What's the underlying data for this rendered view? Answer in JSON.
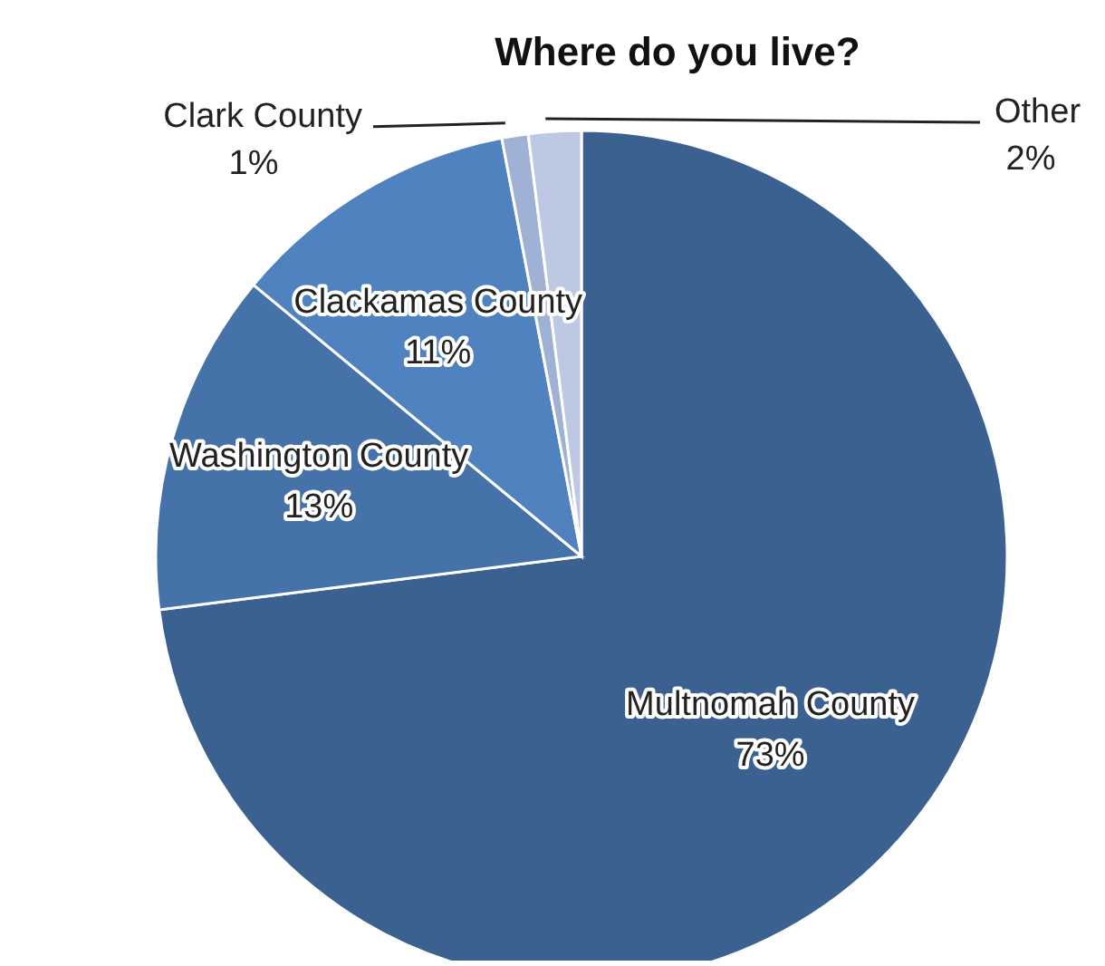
{
  "chart_data": {
    "type": "pie",
    "title": "Where do you live?",
    "categories": [
      "Multnomah County",
      "Washington County",
      "Clackamas County",
      "Clark County",
      "Other"
    ],
    "values": [
      73,
      13,
      11,
      1,
      2
    ],
    "colors": [
      "#3b6190",
      "#4672aa",
      "#5082c0",
      "#9fb1d5",
      "#bdc9e3"
    ],
    "value_labels": [
      "73%",
      "13%",
      "11%",
      "1%",
      "2%"
    ]
  }
}
